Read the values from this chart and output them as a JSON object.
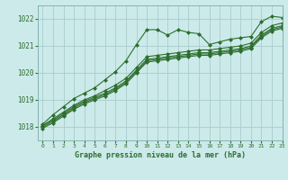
{
  "background_color": "#cceaea",
  "grid_color": "#aacccc",
  "line_color": "#2d6e2d",
  "title": "Graphe pression niveau de la mer (hPa)",
  "xlim": [
    -0.5,
    23
  ],
  "ylim": [
    1017.5,
    1022.5
  ],
  "yticks": [
    1018,
    1019,
    1020,
    1021,
    1022
  ],
  "xticks": [
    0,
    1,
    2,
    3,
    4,
    5,
    6,
    7,
    8,
    9,
    10,
    11,
    12,
    13,
    14,
    15,
    16,
    17,
    18,
    19,
    20,
    21,
    22,
    23
  ],
  "series": [
    {
      "x": [
        0,
        1,
        2,
        3,
        4,
        5,
        6,
        7,
        8,
        9,
        10,
        11,
        12,
        13,
        14,
        15,
        16,
        17,
        18,
        19,
        20,
        21,
        22,
        23
      ],
      "y": [
        1018.1,
        1018.45,
        1018.75,
        1019.05,
        1019.25,
        1019.45,
        1019.75,
        1020.05,
        1020.45,
        1021.05,
        1021.6,
        1021.6,
        1021.4,
        1021.6,
        1021.5,
        1021.45,
        1021.05,
        1021.15,
        1021.25,
        1021.3,
        1021.35,
        1021.9,
        1022.1,
        1022.05
      ],
      "marker": "D",
      "markersize": 2.0,
      "linewidth": 0.8
    },
    {
      "x": [
        0,
        1,
        2,
        3,
        4,
        5,
        6,
        7,
        8,
        9,
        10,
        11,
        12,
        13,
        14,
        15,
        16,
        17,
        18,
        19,
        20,
        21,
        22,
        23
      ],
      "y": [
        1018.05,
        1018.3,
        1018.55,
        1018.8,
        1019.0,
        1019.15,
        1019.35,
        1019.55,
        1019.8,
        1020.2,
        1020.6,
        1020.65,
        1020.7,
        1020.75,
        1020.8,
        1020.85,
        1020.85,
        1020.9,
        1020.95,
        1021.0,
        1021.1,
        1021.5,
        1021.75,
        1021.85
      ],
      "marker": "D",
      "markersize": 2.0,
      "linewidth": 0.8
    },
    {
      "x": [
        0,
        1,
        2,
        3,
        4,
        5,
        6,
        7,
        8,
        9,
        10,
        11,
        12,
        13,
        14,
        15,
        16,
        17,
        18,
        19,
        20,
        21,
        22,
        23
      ],
      "y": [
        1018.05,
        1018.25,
        1018.5,
        1018.75,
        1018.95,
        1019.1,
        1019.25,
        1019.45,
        1019.7,
        1020.1,
        1020.5,
        1020.55,
        1020.6,
        1020.65,
        1020.7,
        1020.75,
        1020.75,
        1020.8,
        1020.85,
        1020.9,
        1021.0,
        1021.4,
        1021.65,
        1021.75
      ],
      "marker": "D",
      "markersize": 2.0,
      "linewidth": 0.8
    },
    {
      "x": [
        0,
        1,
        2,
        3,
        4,
        5,
        6,
        7,
        8,
        9,
        10,
        11,
        12,
        13,
        14,
        15,
        16,
        17,
        18,
        19,
        20,
        21,
        22,
        23
      ],
      "y": [
        1018.0,
        1018.2,
        1018.45,
        1018.7,
        1018.9,
        1019.05,
        1019.2,
        1019.4,
        1019.65,
        1020.05,
        1020.45,
        1020.5,
        1020.55,
        1020.6,
        1020.65,
        1020.7,
        1020.7,
        1020.75,
        1020.8,
        1020.85,
        1020.95,
        1021.35,
        1021.6,
        1021.7
      ],
      "marker": "D",
      "markersize": 2.0,
      "linewidth": 0.8
    },
    {
      "x": [
        0,
        1,
        2,
        3,
        4,
        5,
        6,
        7,
        8,
        9,
        10,
        11,
        12,
        13,
        14,
        15,
        16,
        17,
        18,
        19,
        20,
        21,
        22,
        23
      ],
      "y": [
        1017.95,
        1018.15,
        1018.4,
        1018.65,
        1018.85,
        1019.0,
        1019.15,
        1019.35,
        1019.6,
        1020.0,
        1020.4,
        1020.45,
        1020.5,
        1020.55,
        1020.6,
        1020.65,
        1020.65,
        1020.7,
        1020.75,
        1020.8,
        1020.9,
        1021.3,
        1021.55,
        1021.65
      ],
      "marker": "D",
      "markersize": 2.0,
      "linewidth": 0.8
    }
  ]
}
